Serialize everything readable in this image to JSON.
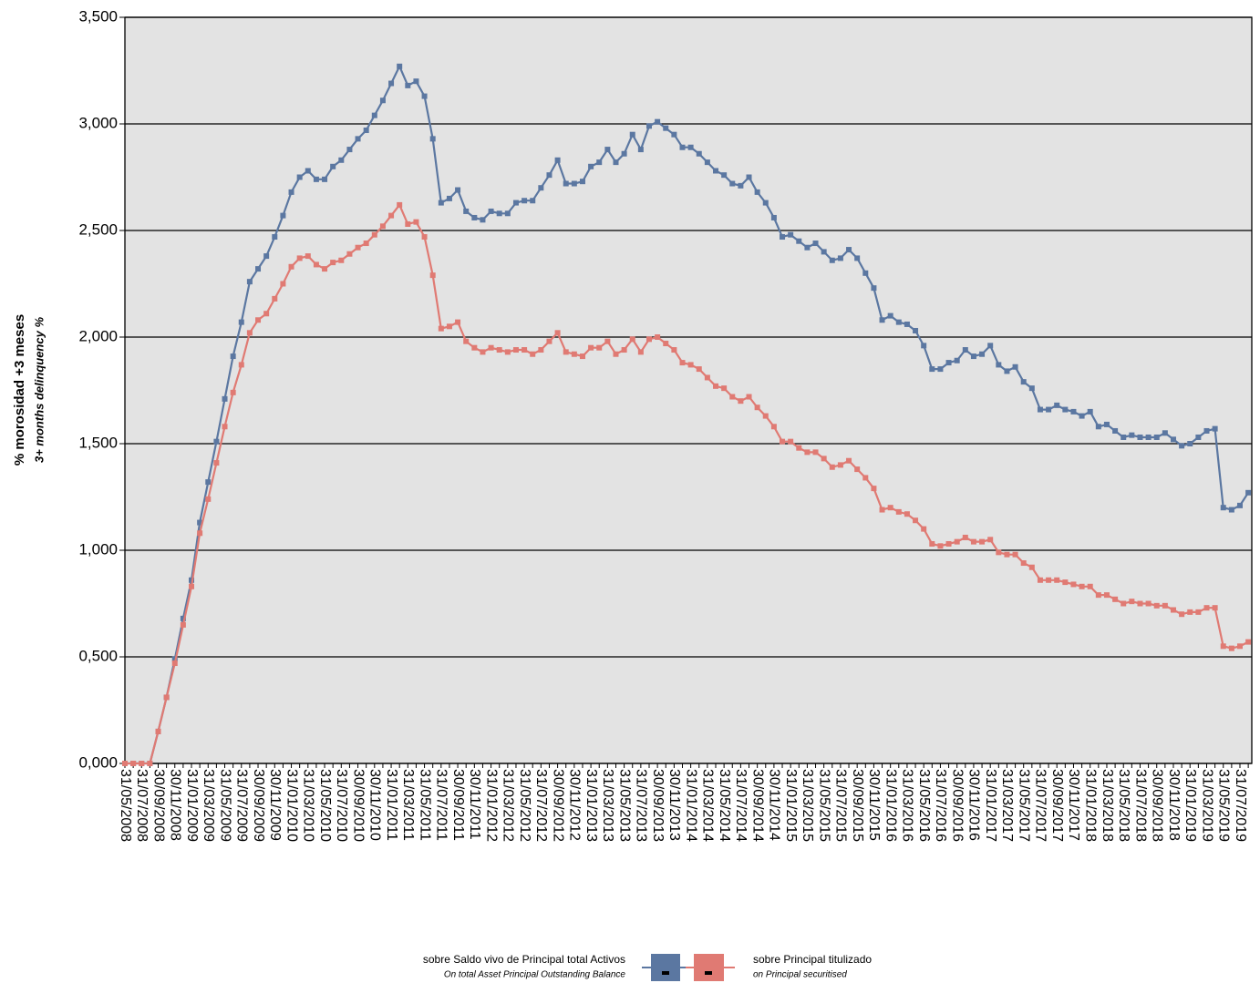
{
  "chart_data": {
    "type": "line",
    "ylabel": "% morosidad +3 meses",
    "ylabel_secondary": "3+ months delinquency %",
    "ylim": [
      0,
      3.5
    ],
    "yticks": [
      {
        "value": 0,
        "label": "0,000"
      },
      {
        "value": 0.5,
        "label": "0,500"
      },
      {
        "value": 1,
        "label": "1,000"
      },
      {
        "value": 1.5,
        "label": "1,500"
      },
      {
        "value": 2,
        "label": "2,000"
      },
      {
        "value": 2.5,
        "label": "2,500"
      },
      {
        "value": 3,
        "label": "3,000"
      },
      {
        "value": 3.5,
        "label": "3,500"
      }
    ],
    "grid": true,
    "plot_background": "#e3e3e3",
    "legend_position": "bottom",
    "categories": [
      "31/05/2008",
      null,
      "31/07/2008",
      null,
      "30/09/2008",
      null,
      "30/11/2008",
      null,
      "31/01/2009",
      null,
      "31/03/2009",
      null,
      "31/05/2009",
      null,
      "31/07/2009",
      null,
      "30/09/2009",
      null,
      "30/11/2009",
      null,
      "31/01/2010",
      null,
      "31/03/2010",
      null,
      "31/05/2010",
      null,
      "31/07/2010",
      null,
      "30/09/2010",
      null,
      "30/11/2010",
      null,
      "31/01/2011",
      null,
      "31/03/2011",
      null,
      "31/05/2011",
      null,
      "31/07/2011",
      null,
      "30/09/2011",
      null,
      "30/11/2011",
      null,
      "31/01/2012",
      null,
      "31/03/2012",
      null,
      "31/05/2012",
      null,
      "31/07/2012",
      null,
      "30/09/2012",
      null,
      "30/11/2012",
      null,
      "31/01/2013",
      null,
      "31/03/2013",
      null,
      "31/05/2013",
      null,
      "31/07/2013",
      null,
      "30/09/2013",
      null,
      "30/11/2013",
      null,
      "31/01/2014",
      null,
      "31/03/2014",
      null,
      "31/05/2014",
      null,
      "31/07/2014",
      null,
      "30/09/2014",
      null,
      "30/11/2014",
      null,
      "31/01/2015",
      null,
      "31/03/2015",
      null,
      "31/05/2015",
      null,
      "31/07/2015",
      null,
      "30/09/2015",
      null,
      "30/11/2015",
      null,
      "31/01/2016",
      null,
      "31/03/2016",
      null,
      "31/05/2016",
      null,
      "31/07/2016",
      null,
      "30/09/2016",
      null,
      "30/11/2016",
      null,
      "31/01/2017",
      null,
      "31/03/2017",
      null,
      "31/05/2017",
      null,
      "31/07/2017",
      null,
      "30/09/2017",
      null,
      "30/11/2017",
      null,
      "31/01/2018",
      null,
      "31/03/2018",
      null,
      "31/05/2018",
      null,
      "31/07/2018",
      null,
      "30/09/2018",
      null,
      "30/11/2018",
      null,
      "31/01/2019",
      null,
      "31/03/2019",
      null,
      "31/05/2019",
      null,
      "31/07/2019",
      null
    ],
    "series": [
      {
        "name": "sobre Saldo vivo de Principal total Activos",
        "name_secondary": "On total Asset Principal Outstanding Balance",
        "color": "#5b77a1",
        "values": [
          0,
          0,
          0,
          0,
          0.15,
          0.31,
          0.49,
          0.68,
          0.86,
          1.13,
          1.32,
          1.51,
          1.71,
          1.91,
          2.07,
          2.26,
          2.32,
          2.38,
          2.47,
          2.57,
          2.68,
          2.75,
          2.78,
          2.74,
          2.74,
          2.8,
          2.83,
          2.88,
          2.93,
          2.97,
          3.04,
          3.11,
          3.19,
          3.27,
          3.18,
          3.2,
          3.13,
          2.93,
          2.63,
          2.65,
          2.69,
          2.59,
          2.56,
          2.55,
          2.59,
          2.58,
          2.58,
          2.63,
          2.64,
          2.64,
          2.7,
          2.76,
          2.83,
          2.72,
          2.72,
          2.73,
          2.8,
          2.82,
          2.88,
          2.82,
          2.86,
          2.95,
          2.88,
          2.99,
          3.01,
          2.98,
          2.95,
          2.89,
          2.89,
          2.86,
          2.82,
          2.78,
          2.76,
          2.72,
          2.71,
          2.75,
          2.68,
          2.63,
          2.56,
          2.47,
          2.48,
          2.45,
          2.42,
          2.44,
          2.4,
          2.36,
          2.37,
          2.41,
          2.37,
          2.3,
          2.23,
          2.08,
          2.1,
          2.07,
          2.06,
          2.03,
          1.96,
          1.85,
          1.85,
          1.88,
          1.89,
          1.94,
          1.91,
          1.92,
          1.96,
          1.87,
          1.84,
          1.86,
          1.79,
          1.76,
          1.66,
          1.66,
          1.68,
          1.66,
          1.65,
          1.63,
          1.65,
          1.58,
          1.59,
          1.56,
          1.53,
          1.54,
          1.53,
          1.53,
          1.53,
          1.55,
          1.52,
          1.49,
          1.5,
          1.53,
          1.56,
          1.57,
          1.2,
          1.19,
          1.21,
          1.27
        ]
      },
      {
        "name": "sobre Principal titulizado",
        "name_secondary": "on Principal securitised",
        "color": "#e07a73",
        "values": [
          0,
          0,
          0,
          0,
          0.15,
          0.31,
          0.47,
          0.65,
          0.83,
          1.08,
          1.24,
          1.41,
          1.58,
          1.74,
          1.87,
          2.02,
          2.08,
          2.11,
          2.18,
          2.25,
          2.33,
          2.37,
          2.38,
          2.34,
          2.32,
          2.35,
          2.36,
          2.39,
          2.42,
          2.44,
          2.48,
          2.52,
          2.57,
          2.62,
          2.53,
          2.54,
          2.47,
          2.29,
          2.04,
          2.05,
          2.07,
          1.98,
          1.95,
          1.93,
          1.95,
          1.94,
          1.93,
          1.94,
          1.94,
          1.92,
          1.94,
          1.98,
          2.02,
          1.93,
          1.92,
          1.91,
          1.95,
          1.95,
          1.98,
          1.92,
          1.94,
          1.99,
          1.93,
          1.99,
          2.0,
          1.97,
          1.94,
          1.88,
          1.87,
          1.85,
          1.81,
          1.77,
          1.76,
          1.72,
          1.7,
          1.72,
          1.67,
          1.63,
          1.58,
          1.51,
          1.51,
          1.48,
          1.46,
          1.46,
          1.43,
          1.39,
          1.4,
          1.42,
          1.38,
          1.34,
          1.29,
          1.19,
          1.2,
          1.18,
          1.17,
          1.14,
          1.1,
          1.03,
          1.02,
          1.03,
          1.04,
          1.06,
          1.04,
          1.04,
          1.05,
          0.99,
          0.98,
          0.98,
          0.94,
          0.92,
          0.86,
          0.86,
          0.86,
          0.85,
          0.84,
          0.83,
          0.83,
          0.79,
          0.79,
          0.77,
          0.75,
          0.76,
          0.75,
          0.75,
          0.74,
          0.74,
          0.72,
          0.7,
          0.71,
          0.71,
          0.73,
          0.73,
          0.55,
          0.54,
          0.55,
          0.57
        ]
      }
    ]
  }
}
